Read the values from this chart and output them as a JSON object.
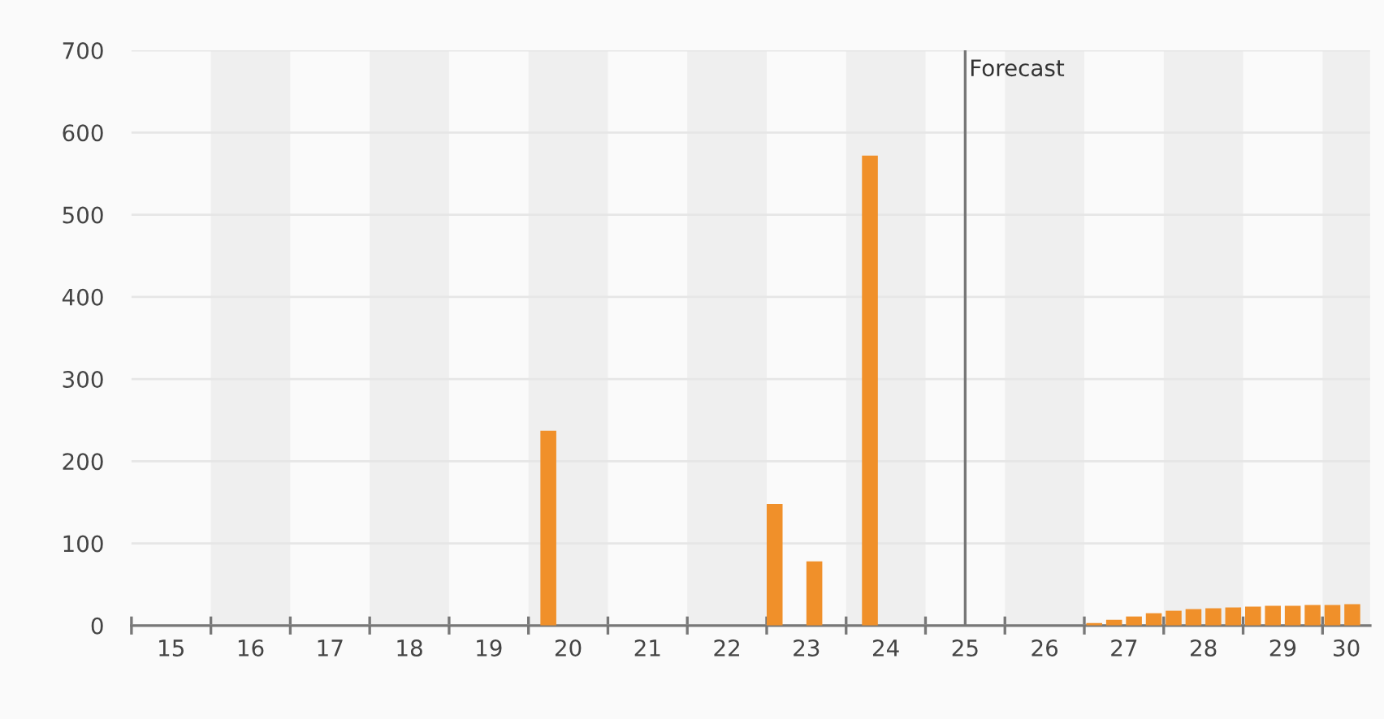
{
  "chart_data": {
    "type": "bar",
    "x": [
      20.25,
      23.1,
      23.6,
      24.3,
      27.125,
      27.375,
      27.625,
      27.875,
      28.125,
      28.375,
      28.625,
      28.875,
      29.125,
      29.375,
      29.625,
      29.875,
      30.125,
      30.375
    ],
    "values": [
      237,
      148,
      78,
      572,
      3,
      7,
      11,
      15,
      18,
      20,
      21,
      22,
      23,
      24,
      24,
      25,
      25,
      26
    ],
    "color": "#f0902a",
    "xlim": [
      15,
      30.6
    ],
    "xticks": [
      {
        "value": 15,
        "label": null
      },
      {
        "value": 16,
        "label": null
      },
      {
        "value": 17,
        "label": null
      },
      {
        "value": 18,
        "label": null
      },
      {
        "value": 19,
        "label": null
      },
      {
        "value": 20,
        "label": null
      },
      {
        "value": 21,
        "label": null
      },
      {
        "value": 22,
        "label": null
      },
      {
        "value": 23,
        "label": null
      },
      {
        "value": 24,
        "label": null
      },
      {
        "value": 25,
        "label": null
      },
      {
        "value": 26,
        "label": null
      },
      {
        "value": 27,
        "label": null
      },
      {
        "value": 28,
        "label": null
      },
      {
        "value": 29,
        "label": null
      },
      {
        "value": 30,
        "label": null
      },
      {
        "value": 15.5,
        "label": "15"
      },
      {
        "value": 16.5,
        "label": "16"
      },
      {
        "value": 17.5,
        "label": "17"
      },
      {
        "value": 18.5,
        "label": "18"
      },
      {
        "value": 19.5,
        "label": "19"
      },
      {
        "value": 20.5,
        "label": "20"
      },
      {
        "value": 21.5,
        "label": "21"
      },
      {
        "value": 22.5,
        "label": "22"
      },
      {
        "value": 23.5,
        "label": "23"
      },
      {
        "value": 24.5,
        "label": "24"
      },
      {
        "value": 25.5,
        "label": "25"
      },
      {
        "value": 26.5,
        "label": "26"
      },
      {
        "value": 27.5,
        "label": "27"
      },
      {
        "value": 28.5,
        "label": "28"
      },
      {
        "value": 29.5,
        "label": "29"
      },
      {
        "value": 30.3,
        "label": "30"
      }
    ],
    "ylim": [
      0,
      700
    ],
    "yticks": [
      0,
      100,
      200,
      300,
      400,
      500,
      600,
      700
    ],
    "grid": "y",
    "ref_lines": [
      {
        "axis": "x",
        "value": 25.5,
        "label": "Forecast",
        "color": "#777777"
      }
    ],
    "bands": [
      {
        "axis": "x",
        "from": 16,
        "to": 17,
        "color": "#efefef"
      },
      {
        "axis": "x",
        "from": 18,
        "to": 19,
        "color": "#efefef"
      },
      {
        "axis": "x",
        "from": 20,
        "to": 21,
        "color": "#efefef"
      },
      {
        "axis": "x",
        "from": 22,
        "to": 23,
        "color": "#efefef"
      },
      {
        "axis": "x",
        "from": 24,
        "to": 25,
        "color": "#efefef"
      },
      {
        "axis": "x",
        "from": 26,
        "to": 27,
        "color": "#efefef"
      },
      {
        "axis": "x",
        "from": 28,
        "to": 29,
        "color": "#efefef"
      },
      {
        "axis": "x",
        "from": 30,
        "to": 30.6,
        "color": "#efefef"
      }
    ]
  }
}
